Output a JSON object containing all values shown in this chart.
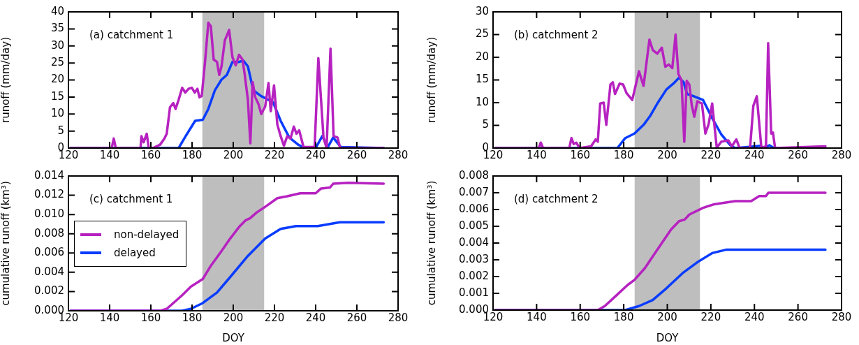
{
  "chart_data": [
    {
      "type": "line",
      "ylabel": "runoff (mm/day)",
      "annotations": [
        "(a) catchment 1"
      ],
      "xlim": [
        120,
        280
      ],
      "xticks": [
        120,
        140,
        160,
        180,
        200,
        220,
        240,
        260,
        280
      ],
      "ylim": [
        0,
        40
      ],
      "yticks": [
        0,
        5,
        10,
        15,
        20,
        25,
        30,
        35,
        40
      ],
      "bands": [
        {
          "axis": "x",
          "from": 185,
          "to": 215,
          "color": "#bebebe"
        }
      ],
      "legend": false,
      "series": [
        {
          "color": "#b622c0",
          "x": [
            121,
            141,
            142,
            143,
            155,
            155.4,
            156.5,
            158,
            159,
            161,
            164.5,
            166.6,
            167.7,
            169.3,
            170.9,
            172,
            173.5,
            175.2,
            176.7,
            178.3,
            179.9,
            181.3,
            182.6,
            183.6,
            184.7,
            186.3,
            187.9,
            189.1,
            190.5,
            192.1,
            193.2,
            194.3,
            195.9,
            198,
            199.6,
            201.2,
            202.8,
            204.5,
            205.5,
            207.1,
            208.3,
            209.4,
            210.7,
            212.3,
            213.6,
            215.5,
            217.1,
            218.2,
            219.8,
            221.4,
            223,
            224.6,
            226.2,
            227.8,
            229.4,
            230.7,
            232,
            234.1,
            239.5,
            241.3,
            243.8,
            245.3,
            247.2,
            248.7,
            250.6,
            251.9,
            273
          ],
          "values": [
            0,
            0,
            2.8,
            0,
            0,
            3.5,
            1.7,
            4.2,
            0,
            0,
            1,
            2.8,
            4.2,
            12,
            13.2,
            11.5,
            14.2,
            17.7,
            16.3,
            17.4,
            17.7,
            16.3,
            17.4,
            14.9,
            15.3,
            25.3,
            36.8,
            35.8,
            26,
            25.3,
            21.5,
            24,
            31.6,
            34.7,
            26.7,
            24.3,
            27.4,
            26,
            21.9,
            14.2,
            1.4,
            19.4,
            14.9,
            12.8,
            10,
            12.2,
            19.1,
            10.8,
            18.4,
            6.9,
            3.5,
            0.7,
            3.5,
            2.8,
            6.3,
            4.2,
            5.2,
            0.3,
            0.3,
            26.4,
            3.1,
            0,
            29.2,
            3.5,
            3.1,
            0,
            0
          ]
        },
        {
          "color": "#0a3cff",
          "x": [
            121,
            173.5,
            177.2,
            181.5,
            185.2,
            187.9,
            191.1,
            194.3,
            196.9,
            199.6,
            202.8,
            204.9,
            207.1,
            209.7,
            213.4,
            219.3,
            223,
            227.2,
            231.5,
            234.7,
            240,
            243.2,
            245.9,
            248.5,
            252.2,
            273
          ],
          "values": [
            0,
            0,
            3.8,
            8,
            8.3,
            11.5,
            17,
            20.1,
            21.5,
            25.3,
            25.3,
            25.7,
            24,
            17,
            15.3,
            13.5,
            8,
            3.1,
            1,
            0,
            0,
            3.5,
            0.3,
            3.1,
            0.3,
            0
          ]
        }
      ]
    },
    {
      "type": "line",
      "ylabel": "runoff (mm/day)",
      "annotations": [
        "(b) catchment 2"
      ],
      "xlim": [
        120,
        280
      ],
      "xticks": [
        120,
        140,
        160,
        180,
        200,
        220,
        240,
        260,
        280
      ],
      "ylim": [
        0,
        30
      ],
      "yticks": [
        0,
        5,
        10,
        15,
        20,
        25,
        30
      ],
      "bands": [
        {
          "axis": "x",
          "from": 185,
          "to": 215,
          "color": "#bebebe"
        }
      ],
      "legend": false,
      "series": [
        {
          "color": "#b622c0",
          "x": [
            121,
            141,
            141.9,
            143,
            155,
            156,
            157,
            158.2,
            159.7,
            165,
            167.1,
            168.1,
            169.2,
            170.8,
            172,
            173.9,
            175,
            176,
            178.1,
            179.7,
            181.3,
            183.9,
            187,
            189.1,
            191.8,
            193.3,
            195.4,
            197.5,
            199.1,
            200.7,
            202.3,
            203.8,
            205.1,
            206.5,
            207.8,
            208.9,
            210.1,
            211.2,
            212.4,
            213.8,
            215.9,
            217.5,
            219,
            220.6,
            222.7,
            224.8,
            228,
            229.6,
            231.7,
            233.2,
            238,
            239.5,
            241.1,
            243.2,
            245.3,
            246.3,
            247.7,
            248.5,
            249.5,
            272.6
          ],
          "values": [
            0,
            0,
            1.2,
            0,
            0,
            2.2,
            0.9,
            1.2,
            0,
            0.4,
            1.9,
            1.4,
            9.8,
            10,
            5.1,
            14,
            14.5,
            11.9,
            14.2,
            14,
            12.1,
            10.6,
            16.9,
            13.7,
            23.9,
            21.6,
            20.8,
            22.1,
            17.9,
            18.4,
            17.6,
            25,
            16.3,
            15,
            1.4,
            14.8,
            14,
            9.5,
            6.9,
            10.3,
            9.8,
            3.2,
            5.3,
            9.8,
            0.1,
            1.4,
            1.7,
            0.4,
            1.9,
            0,
            0,
            9.3,
            11.4,
            0,
            0.4,
            23.1,
            3.2,
            3.4,
            0,
            0.4
          ]
        },
        {
          "color": "#0a3cff",
          "x": [
            121,
            177.1,
            180.7,
            184.9,
            189.1,
            192.3,
            195.4,
            199.6,
            202.8,
            205.4,
            207.5,
            209.1,
            212.2,
            216.4,
            220.6,
            224.8,
            229,
            231.1,
            240.6,
            242.7,
            244.2,
            246.9,
            249,
            272.6
          ],
          "values": [
            0,
            0,
            2.2,
            3.2,
            5.1,
            7.2,
            9.8,
            12.9,
            14.2,
            15.5,
            14.5,
            11.9,
            11.4,
            10.6,
            6.6,
            3,
            0.6,
            0,
            0.4,
            0.5,
            0,
            0.6,
            0,
            0
          ]
        }
      ]
    },
    {
      "type": "line",
      "xlabel": "DOY",
      "ylabel": "cumulative runoff (km³)",
      "annotations": [
        "(c) catchment 1"
      ],
      "xlim": [
        120,
        280
      ],
      "xticks": [
        120,
        140,
        160,
        180,
        200,
        220,
        240,
        260,
        280
      ],
      "ylim": [
        0,
        0.014
      ],
      "yticks": [
        {
          "value": 0,
          "label": "0.000"
        },
        {
          "value": 0.002,
          "label": "0.002"
        },
        {
          "value": 0.004,
          "label": "0.004"
        },
        {
          "value": 0.006,
          "label": "0.006"
        },
        {
          "value": 0.008,
          "label": "0.008"
        },
        {
          "value": 0.01,
          "label": "0.010"
        },
        {
          "value": 0.012,
          "label": "0.012"
        },
        {
          "value": 0.014,
          "label": "0.014"
        }
      ],
      "bands": [
        {
          "axis": "x",
          "from": 185,
          "to": 215,
          "color": "#bebebe"
        }
      ],
      "legend": "center left",
      "series": [
        {
          "name": "non-delayed",
          "color": "#b622c0",
          "x": [
            121,
            164.5,
            167.7,
            170.9,
            175.1,
            179.4,
            185.2,
            188.9,
            194.3,
            198.5,
            202.8,
            206,
            208.1,
            211.3,
            215.5,
            221.4,
            226.2,
            232.5,
            240,
            242.6,
            246.9,
            248.5,
            256,
            273
          ],
          "values": [
            0,
            0,
            0.0002,
            0.0008,
            0.0016,
            0.0025,
            0.0033,
            0.0046,
            0.0062,
            0.0075,
            0.0087,
            0.0094,
            0.0096,
            0.0102,
            0.0108,
            0.0117,
            0.0119,
            0.0122,
            0.0122,
            0.0127,
            0.0128,
            0.0132,
            0.0133,
            0.0132
          ]
        },
        {
          "name": "delayed",
          "color": "#0a3cff",
          "x": [
            121,
            175.1,
            179.4,
            185.2,
            192.1,
            198.5,
            207.1,
            215.5,
            223,
            230.4,
            241,
            251.7,
            273
          ],
          "values": [
            0,
            0,
            0.0002,
            0.0008,
            0.0019,
            0.0035,
            0.0057,
            0.0075,
            0.0085,
            0.0088,
            0.0088,
            0.0092,
            0.0092
          ]
        }
      ]
    },
    {
      "type": "line",
      "xlabel": "DOY",
      "ylabel": "cumulative runoff (km³)",
      "annotations": [
        "(d) catchment 2"
      ],
      "xlim": [
        120,
        280
      ],
      "xticks": [
        120,
        140,
        160,
        180,
        200,
        220,
        240,
        260,
        280
      ],
      "ylim": [
        0,
        0.008
      ],
      "yticks": [
        {
          "value": 0,
          "label": "0.000"
        },
        {
          "value": 0.001,
          "label": "0.001"
        },
        {
          "value": 0.002,
          "label": "0.002"
        },
        {
          "value": 0.003,
          "label": "0.003"
        },
        {
          "value": 0.004,
          "label": "0.004"
        },
        {
          "value": 0.005,
          "label": "0.005"
        },
        {
          "value": 0.006,
          "label": "0.006"
        },
        {
          "value": 0.007,
          "label": "0.007"
        },
        {
          "value": 0.008,
          "label": "0.008"
        }
      ],
      "bands": [
        {
          "axis": "x",
          "from": 185,
          "to": 215,
          "color": "#bebebe"
        }
      ],
      "legend": false,
      "series": [
        {
          "color": "#b622c0",
          "x": [
            121,
            168.1,
            171.3,
            176.5,
            181.8,
            184.9,
            189.7,
            193.3,
            197.5,
            201.7,
            205.4,
            208,
            210.1,
            216.4,
            221.1,
            231.1,
            238.5,
            242.2,
            245.3,
            246.4,
            248.5,
            272.6
          ],
          "values": [
            0,
            0,
            0.00024,
            0.00086,
            0.0015,
            0.0018,
            0.0025,
            0.0032,
            0.004,
            0.0048,
            0.0053,
            0.0054,
            0.0057,
            0.0061,
            0.0063,
            0.0065,
            0.0065,
            0.0068,
            0.0068,
            0.007,
            0.007,
            0.007
          ]
        },
        {
          "color": "#0a3cff",
          "x": [
            121,
            180.7,
            187,
            193.3,
            199.6,
            207,
            214.3,
            220.6,
            226.9,
            240.6,
            272.6
          ],
          "values": [
            0,
            0,
            0.00024,
            0.0006,
            0.0013,
            0.0022,
            0.0029,
            0.0034,
            0.0036,
            0.0036,
            0.0036
          ]
        }
      ]
    }
  ]
}
